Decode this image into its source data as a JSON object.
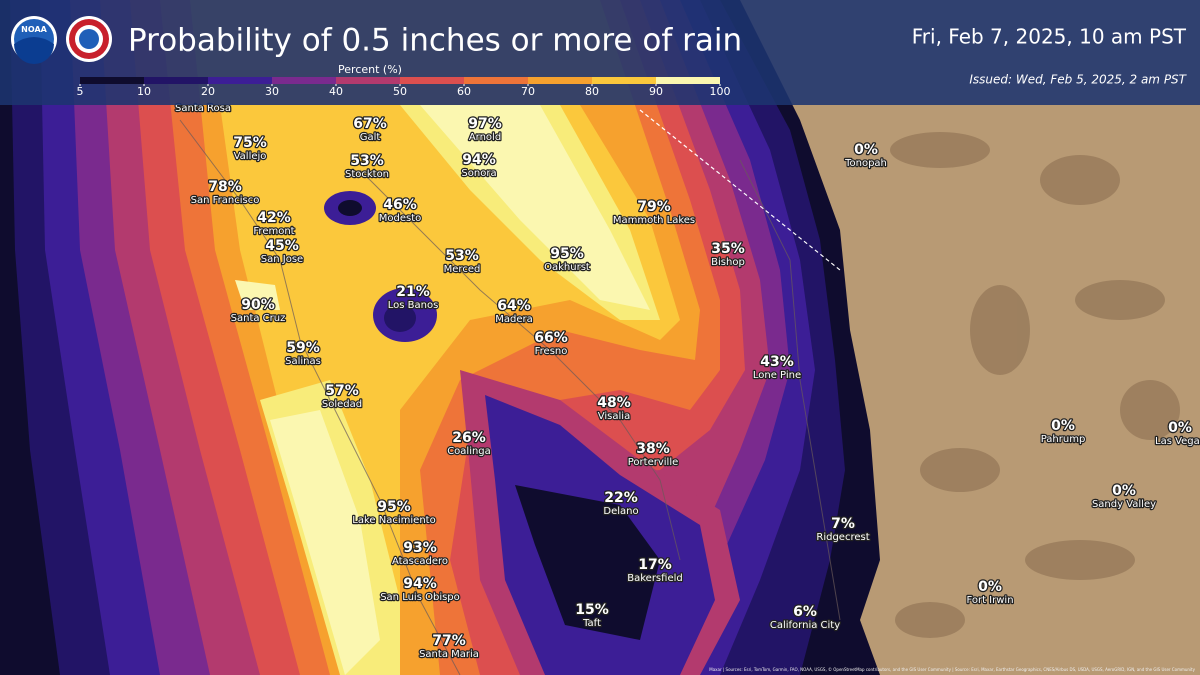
{
  "header": {
    "logo_text": "NOAA",
    "title": "Probability of 0.5 inches or more of rain",
    "valid_time": "Fri, Feb 7, 2025, 10 am PST",
    "issued": "Issued: Wed, Feb 5, 2025, 2 am PST"
  },
  "legend": {
    "title": "Percent (%)",
    "ticks": [
      5,
      10,
      20,
      30,
      40,
      50,
      60,
      70,
      80,
      90,
      100
    ]
  },
  "cities": [
    {
      "pct": "75%",
      "name": "Vallejo"
    },
    {
      "pct": "67%",
      "name": "Galt"
    },
    {
      "pct": "97%",
      "name": "Arnold"
    },
    {
      "pct": "53%",
      "name": "Stockton"
    },
    {
      "pct": "94%",
      "name": "Sonora"
    },
    {
      "pct": "78%",
      "name": "San Francisco"
    },
    {
      "pct": "46%",
      "name": "Modesto"
    },
    {
      "pct": "79%",
      "name": "Mammoth Lakes"
    },
    {
      "pct": "42%",
      "name": "Fremont"
    },
    {
      "pct": "45%",
      "name": "San Jose"
    },
    {
      "pct": "35%",
      "name": "Bishop"
    },
    {
      "pct": "53%",
      "name": "Merced"
    },
    {
      "pct": "95%",
      "name": "Oakhurst"
    },
    {
      "pct": "21%",
      "name": "Los Banos"
    },
    {
      "pct": "90%",
      "name": "Santa Cruz"
    },
    {
      "pct": "64%",
      "name": "Madera"
    },
    {
      "pct": "66%",
      "name": "Fresno"
    },
    {
      "pct": "59%",
      "name": "Salinas"
    },
    {
      "pct": "43%",
      "name": "Lone Pine"
    },
    {
      "pct": "57%",
      "name": "Soledad"
    },
    {
      "pct": "48%",
      "name": "Visalia"
    },
    {
      "pct": "26%",
      "name": "Coalinga"
    },
    {
      "pct": "38%",
      "name": "Porterville"
    },
    {
      "pct": "22%",
      "name": "Delano"
    },
    {
      "pct": "95%",
      "name": "Lake Nacimiento"
    },
    {
      "pct": "7%",
      "name": "Ridgecrest"
    },
    {
      "pct": "93%",
      "name": "Atascadero"
    },
    {
      "pct": "17%",
      "name": "Bakersfield"
    },
    {
      "pct": "94%",
      "name": "San Luis Obispo"
    },
    {
      "pct": "15%",
      "name": "Taft"
    },
    {
      "pct": "6%",
      "name": "California City"
    },
    {
      "pct": "77%",
      "name": "Santa Maria"
    },
    {
      "pct": "0%",
      "name": "Tonopah"
    },
    {
      "pct": "0%",
      "name": "Pahrump"
    },
    {
      "pct": "0%",
      "name": "Las Vegas"
    },
    {
      "pct": "0%",
      "name": "Sandy Valley"
    },
    {
      "pct": "0%",
      "name": "Fort Irwin"
    }
  ],
  "place_names": [
    "Santa Rosa"
  ],
  "attribution": "Maxar | Sources: Esri, TomTom, Garmin, FAO, NOAA, USGS, © OpenStreetMap contributors, and the GIS User Community | Source: Esri, Maxar, Earthstar Geographics, CNES/Airbus DS, USDA, USGS, AeroGRID, IGN, and the GIS User Community"
}
